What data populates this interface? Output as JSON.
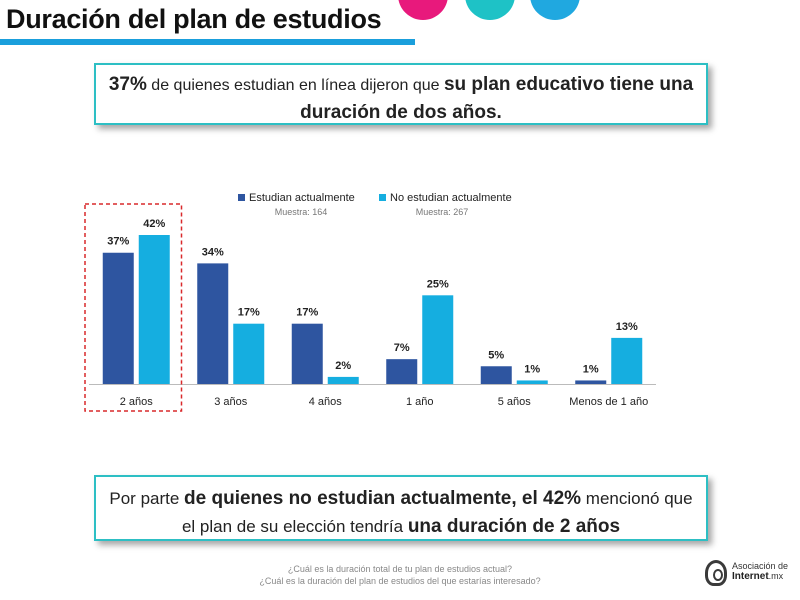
{
  "header": {
    "title": "Duración del plan de estudios"
  },
  "callout_top": {
    "pct": "37%",
    "text1": " de quienes estudian en línea dijeron que ",
    "bold1": "su plan educativo tiene una",
    "bold2": "duración de dos años."
  },
  "callout_bottom": {
    "text1": "Por parte ",
    "bold1": "de quienes no estudian actualmente, el 42%",
    "text2": " mencionó que",
    "text3": "el plan de su elección tendría ",
    "bold2": "una duración de 2 años"
  },
  "chart_data": {
    "type": "bar",
    "categories": [
      "2 años",
      "3 años",
      "4 años",
      "1 año",
      "5 años",
      "Menos de 1 año"
    ],
    "series": [
      {
        "name": "Estudian actualmente",
        "sample": "Muestra: 164",
        "color": "#2e55a0",
        "values": [
          37,
          34,
          17,
          7,
          5,
          1
        ],
        "labels": [
          "37%",
          "34%",
          "17%",
          "7%",
          "5%",
          "1%"
        ]
      },
      {
        "name": "No estudian actualmente",
        "sample": "Muestra: 267",
        "color": "#15aee0",
        "values": [
          42,
          17,
          2,
          25,
          1,
          13
        ],
        "labels": [
          "42%",
          "17%",
          "2%",
          "25%",
          "1%",
          "13%"
        ]
      }
    ],
    "ylim": [
      0,
      42
    ],
    "legend": "top",
    "highlight_category": "2 años",
    "highlight_color": "#d9292b"
  },
  "footer": {
    "q1": "¿Cuál es la duración total de tu plan de estudios actual?",
    "q2": "¿Cuál es la duración del plan de estudios del que estarías interesado?"
  },
  "logo": {
    "line1": "Asociación de",
    "line2": "Internet",
    "line3": ".mx"
  }
}
